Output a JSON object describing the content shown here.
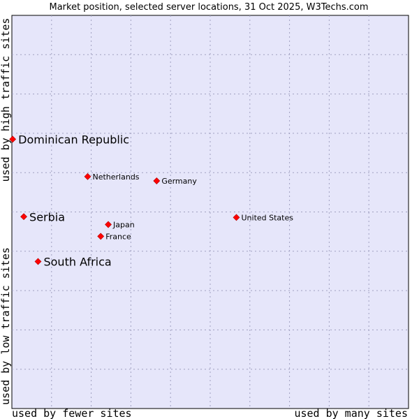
{
  "chart_data": {
    "type": "scatter",
    "title": "Market position, selected server locations, 31 Oct 2025, W3Techs.com",
    "xlabel_left": "used by fewer sites",
    "xlabel_right": "used by many sites",
    "ylabel_top": "used by high traffic sites",
    "ylabel_bottom": "used by low traffic sites",
    "xlim": [
      0,
      100
    ],
    "ylim": [
      0,
      100
    ],
    "grid": true,
    "colors": {
      "plot_bg": "#e6e6fa",
      "grid": "#a0a0c0",
      "marker": "#ff0000",
      "text": "#000000"
    },
    "points": [
      {
        "label": "Dominican Republic",
        "x": 0.2,
        "y": 68.5,
        "highlight": true
      },
      {
        "label": "Netherlands",
        "x": 19.1,
        "y": 59.0,
        "highlight": false
      },
      {
        "label": "Germany",
        "x": 36.5,
        "y": 57.9,
        "highlight": false
      },
      {
        "label": "Serbia",
        "x": 3.0,
        "y": 48.8,
        "highlight": true
      },
      {
        "label": "United States",
        "x": 56.6,
        "y": 48.6,
        "highlight": false
      },
      {
        "label": "Japan",
        "x": 24.3,
        "y": 46.8,
        "highlight": false
      },
      {
        "label": "France",
        "x": 22.4,
        "y": 43.8,
        "highlight": false
      },
      {
        "label": "South Africa",
        "x": 6.6,
        "y": 37.4,
        "highlight": true
      }
    ]
  }
}
